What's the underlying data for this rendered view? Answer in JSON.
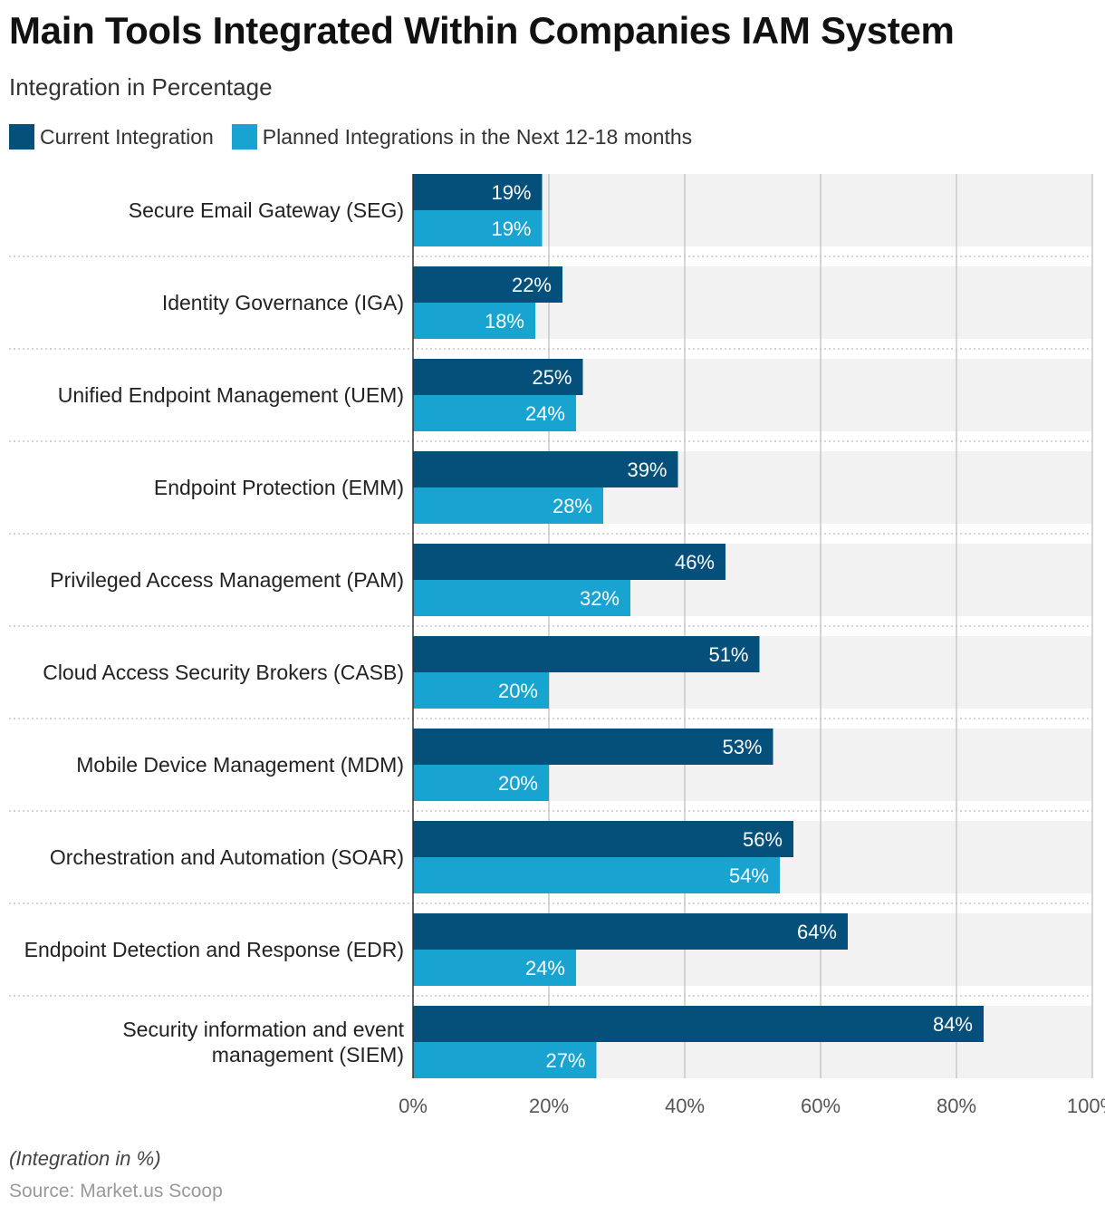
{
  "header": {
    "title": "Main Tools Integrated Within Companies IAM System",
    "subtitle": "Integration in Percentage"
  },
  "legend": [
    {
      "label": "Current Integration",
      "color": "#04507a"
    },
    {
      "label": "Planned Integrations in the Next 12-18 months",
      "color": "#18a3d0"
    }
  ],
  "chart_data": {
    "type": "bar",
    "orientation": "horizontal",
    "categories": [
      "Secure Email Gateway (SEG)",
      "Identity Governance (IGA)",
      "Unified Endpoint Management (UEM)",
      "Endpoint Protection (EMM)",
      "Privileged Access Management (PAM)",
      "Cloud Access Security Brokers (CASB)",
      "Mobile Device Management (MDM)",
      "Orchestration and Automation (SOAR)",
      "Endpoint Detection and Response (EDR)",
      "Security information and event management (SIEM)"
    ],
    "category_label_lines": [
      [
        "Secure Email Gateway (SEG)"
      ],
      [
        "Identity Governance (IGA)"
      ],
      [
        "Unified Endpoint Management (UEM)"
      ],
      [
        "Endpoint Protection (EMM)"
      ],
      [
        "Privileged Access Management (PAM)"
      ],
      [
        "Cloud Access Security Brokers (CASB)"
      ],
      [
        "Mobile Device Management (MDM)"
      ],
      [
        "Orchestration and Automation (SOAR)"
      ],
      [
        "Endpoint Detection and Response (EDR)"
      ],
      [
        "Security information and event",
        "management (SIEM)"
      ]
    ],
    "series": [
      {
        "name": "Current Integration",
        "color": "#04507a",
        "values": [
          19,
          22,
          25,
          39,
          46,
          51,
          53,
          56,
          64,
          84
        ]
      },
      {
        "name": "Planned Integrations in the Next 12-18 months",
        "color": "#18a3d0",
        "values": [
          19,
          18,
          24,
          28,
          32,
          20,
          20,
          54,
          24,
          27
        ]
      }
    ],
    "xlim": [
      0,
      100
    ],
    "xticks": [
      0,
      20,
      40,
      60,
      80,
      100
    ],
    "tick_suffix": "%",
    "value_suffix": "%",
    "grid": true,
    "legend_position": "top-left",
    "band_color": "#f2f2f2",
    "grid_color": "#c8c8c8"
  },
  "footer": {
    "note": "(Integration in %)",
    "source": "Source: Market.us Scoop"
  }
}
